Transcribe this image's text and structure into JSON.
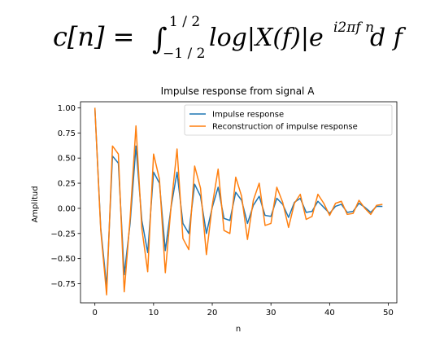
{
  "formula": {
    "lhs": "c[n] = ",
    "integral": "∫",
    "upper_limit": "1 / 2",
    "lower_limit": "−1 / 2",
    "body": "log|X(f)|e",
    "exponent": "i2πf n",
    "differential": "d f"
  },
  "chart_data": {
    "type": "line",
    "title": "Impulse response from signal A",
    "xlabel": "n",
    "ylabel": "Amplitud",
    "xlim": [
      -2.45,
      51.45
    ],
    "ylim": [
      -0.94,
      1.06
    ],
    "xticks": [
      0,
      10,
      20,
      30,
      40,
      50
    ],
    "yticks": [
      -0.75,
      -0.5,
      -0.25,
      0.0,
      0.25,
      0.5,
      0.75,
      1.0
    ],
    "ytick_labels": [
      "−0.75",
      "−0.50",
      "−0.25",
      "0.00",
      "0.25",
      "0.50",
      "0.75",
      "1.00"
    ],
    "grid": false,
    "legend_position": "top-right",
    "x": [
      0,
      1,
      2,
      3,
      4,
      5,
      6,
      7,
      8,
      9,
      10,
      11,
      12,
      13,
      14,
      15,
      16,
      17,
      18,
      19,
      20,
      21,
      22,
      23,
      24,
      25,
      26,
      27,
      28,
      29,
      30,
      31,
      32,
      33,
      34,
      35,
      36,
      37,
      38,
      39,
      40,
      41,
      42,
      43,
      44,
      45,
      46,
      47,
      48,
      49
    ],
    "series": [
      {
        "name": "Impulse response",
        "color": "#1f77b4",
        "values": [
          1.0,
          -0.2,
          -0.78,
          0.52,
          0.45,
          -0.66,
          -0.15,
          0.62,
          -0.12,
          -0.44,
          0.36,
          0.25,
          -0.42,
          0.02,
          0.36,
          -0.15,
          -0.25,
          0.24,
          0.12,
          -0.25,
          0.01,
          0.21,
          -0.1,
          -0.12,
          0.16,
          0.08,
          -0.15,
          0.03,
          0.12,
          -0.07,
          -0.08,
          0.1,
          0.04,
          -0.09,
          0.06,
          0.1,
          -0.04,
          -0.03,
          0.07,
          0.01,
          -0.05,
          0.02,
          0.04,
          -0.04,
          -0.03,
          0.05,
          0.01,
          -0.04,
          0.02,
          0.02
        ]
      },
      {
        "name": "Reconstruction of impulse response",
        "color": "#ff7f0e",
        "values": [
          1.0,
          -0.22,
          -0.86,
          0.62,
          0.54,
          -0.83,
          -0.1,
          0.82,
          -0.2,
          -0.63,
          0.54,
          0.29,
          -0.64,
          0.03,
          0.59,
          -0.3,
          -0.41,
          0.42,
          0.2,
          -0.46,
          0.03,
          0.39,
          -0.22,
          -0.25,
          0.31,
          0.12,
          -0.31,
          0.08,
          0.25,
          -0.17,
          -0.15,
          0.21,
          0.06,
          -0.19,
          0.05,
          0.14,
          -0.11,
          -0.08,
          0.14,
          0.05,
          -0.07,
          0.05,
          0.07,
          -0.06,
          -0.05,
          0.08,
          0.0,
          -0.06,
          0.03,
          0.04
        ]
      }
    ]
  }
}
